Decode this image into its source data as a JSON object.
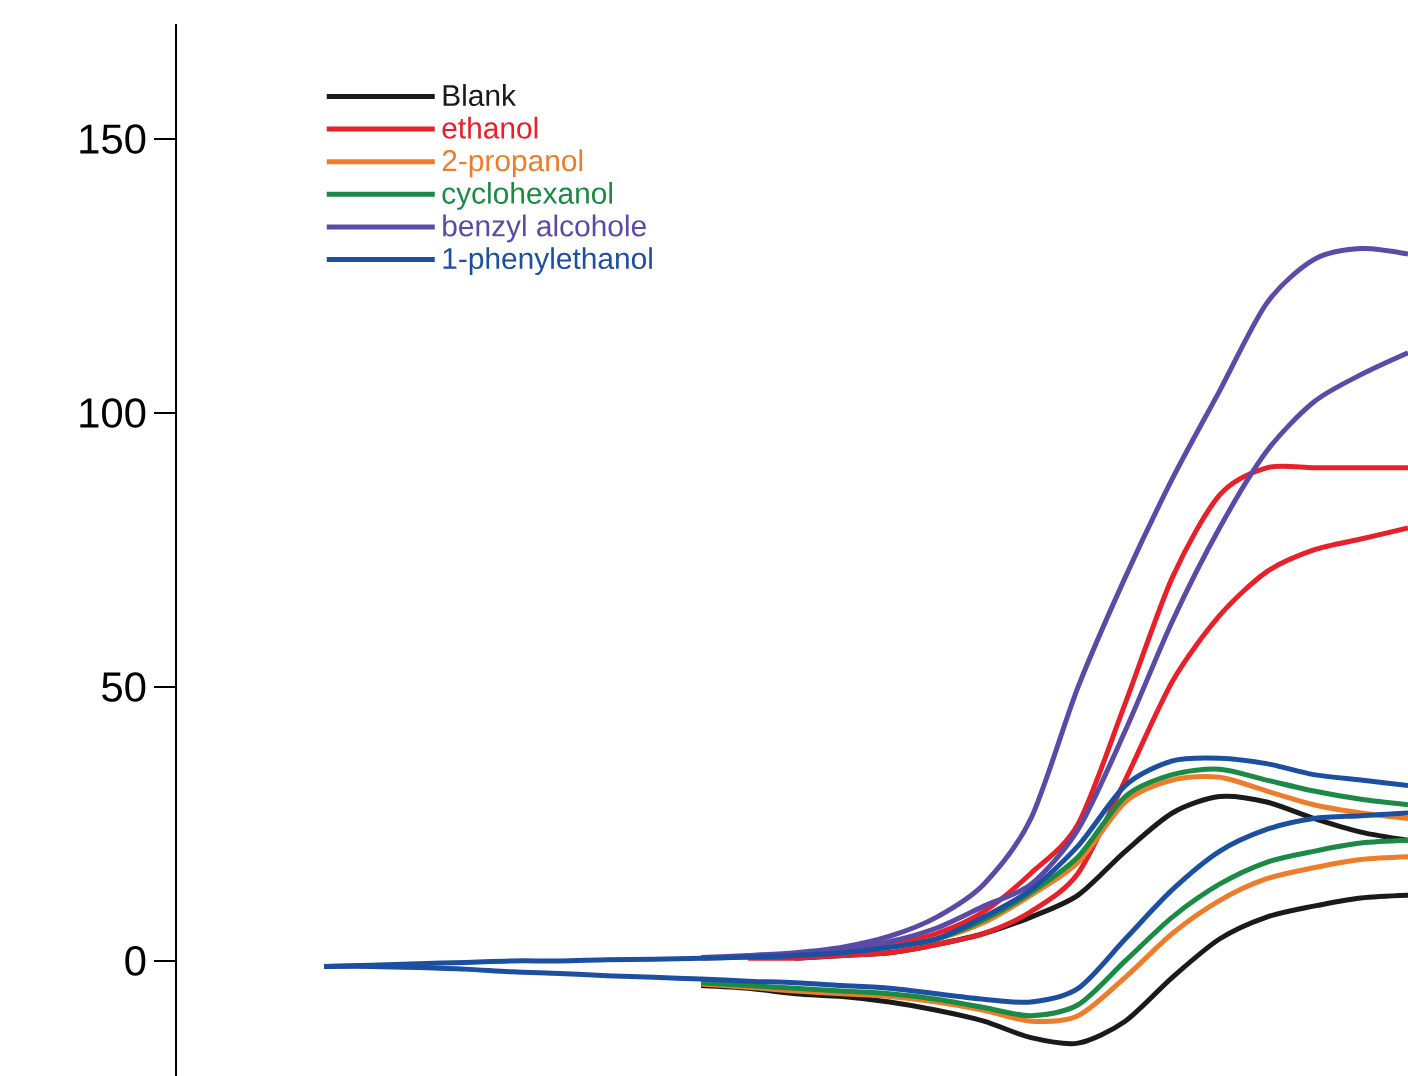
{
  "chart_data": {
    "type": "line",
    "categories": [
      null,
      null,
      null,
      null,
      null,
      null,
      null,
      null,
      null,
      null,
      null,
      null,
      null,
      null,
      null,
      null,
      null,
      null,
      null,
      null,
      null,
      null,
      null,
      null
    ],
    "ylim": [
      -21,
      171
    ],
    "yticks": [
      0,
      50,
      100,
      150
    ],
    "tick_labels": "y",
    "legend": "top left",
    "line_style": "solid",
    "marker": "none",
    "series": [
      {
        "name": "Blank",
        "color": "#1a1a1a",
        "values": [
          null,
          null,
          null,
          null,
          null,
          null,
          null,
          null,
          null,
          null,
          0.5,
          1,
          1.5,
          3,
          5,
          8,
          12,
          20,
          27,
          30,
          29,
          26,
          23.5,
          22
        ]
      },
      {
        "color": "#1a1a1a",
        "values": [
          null,
          null,
          null,
          null,
          null,
          null,
          null,
          null,
          -4.5,
          -5,
          -6,
          -6.5,
          -7.5,
          -9,
          -11,
          -14,
          -15,
          -11,
          -3,
          4,
          8,
          10,
          11.5,
          12
        ]
      },
      {
        "name": "ethanol",
        "color": "#e8202a",
        "values": [
          null,
          null,
          null,
          null,
          null,
          null,
          null,
          null,
          null,
          0.7,
          1,
          2,
          3,
          5,
          9,
          16,
          25,
          47,
          70,
          85,
          90,
          90,
          90,
          90
        ]
      },
      {
        "color": "#e8202a",
        "values": [
          null,
          null,
          null,
          null,
          null,
          null,
          null,
          null,
          null,
          0.5,
          0.5,
          1,
          1.5,
          3,
          5,
          9,
          16,
          33,
          51,
          63,
          71,
          75,
          77,
          79
        ]
      },
      {
        "name": "2-propanol",
        "color": "#ee7d2b",
        "values": [
          null,
          null,
          null,
          null,
          null,
          null,
          null,
          null,
          null,
          null,
          null,
          null,
          2.5,
          4,
          7,
          12,
          18,
          29,
          33,
          33.5,
          31,
          28.5,
          27,
          26
        ]
      },
      {
        "color": "#ee7d2b",
        "values": [
          null,
          null,
          null,
          null,
          null,
          null,
          null,
          null,
          -4.2,
          -4.8,
          -5.5,
          -6,
          -6.5,
          -7.5,
          -9,
          -11,
          -10,
          -3,
          5,
          11,
          15,
          17,
          18.5,
          19
        ]
      },
      {
        "name": "cyclohexanol",
        "color": "#1b8a45",
        "values": [
          null,
          null,
          null,
          null,
          null,
          null,
          null,
          null,
          null,
          null,
          null,
          1.5,
          2.5,
          4,
          7.5,
          12.5,
          19,
          30,
          34,
          35,
          33,
          31,
          29.5,
          28.5
        ]
      },
      {
        "color": "#1b8a45",
        "values": [
          null,
          null,
          null,
          null,
          null,
          null,
          null,
          null,
          -4,
          -4.5,
          -5,
          -5.5,
          -6,
          -7,
          -8.5,
          -10,
          -8,
          0,
          8,
          14,
          18,
          20,
          21.5,
          22
        ]
      },
      {
        "name": "benzyl alcohole",
        "color": "#5b4aa6",
        "values": [
          null,
          null,
          null,
          null,
          null,
          null,
          null,
          null,
          0.6,
          1,
          1.5,
          2.5,
          4.5,
          8,
          14,
          26,
          50,
          70,
          88,
          104,
          120,
          128,
          130,
          129
        ]
      },
      {
        "color": "#5b4aa6",
        "values": [
          null,
          null,
          null,
          null,
          null,
          null,
          null,
          null,
          0.5,
          0.7,
          1,
          2,
          3.5,
          6,
          10,
          14,
          24,
          42,
          62,
          79,
          93,
          102,
          107,
          111
        ]
      },
      {
        "name": "1-phenylethanol",
        "color": "#1d4fa0",
        "values": [
          -1,
          -0.8,
          -0.5,
          -0.3,
          0,
          0,
          0.2,
          0.3,
          0.5,
          0.7,
          1,
          1.5,
          2.5,
          4,
          8,
          13,
          21,
          32,
          36.5,
          37,
          36,
          34,
          33,
          32
        ]
      },
      {
        "color": "#1d4fa0",
        "values": [
          -1,
          -1,
          -1.2,
          -1.5,
          -2,
          -2.3,
          -2.7,
          -3,
          -3.3,
          -3.7,
          -4,
          -4.5,
          -5,
          -6,
          -7,
          -7.5,
          -5,
          4,
          13,
          20,
          24,
          26,
          26.5,
          27
        ]
      }
    ]
  }
}
